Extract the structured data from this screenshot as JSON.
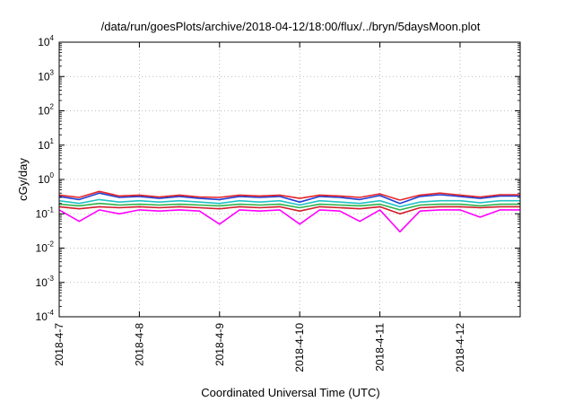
{
  "chart_data": {
    "type": "line",
    "title": "/data/run/goesPlots/archive/2018-04-12/18:00/flux/../bryn/5daysMoon.plot",
    "xlabel": "Coordinated Universal Time (UTC)",
    "ylabel": "cGy/day",
    "y_scale": "log",
    "ylim": [
      0.0001,
      10000
    ],
    "y_ticks": [
      {
        "base": "10",
        "exp": "4",
        "value": 10000
      },
      {
        "base": "10",
        "exp": "3",
        "value": 1000
      },
      {
        "base": "10",
        "exp": "2",
        "value": 100
      },
      {
        "base": "10",
        "exp": "1",
        "value": 10
      },
      {
        "base": "10",
        "exp": "0",
        "value": 1
      },
      {
        "base": "10",
        "exp": "-1",
        "value": 0.1
      },
      {
        "base": "10",
        "exp": "-2",
        "value": 0.01
      },
      {
        "base": "10",
        "exp": "-3",
        "value": 0.001
      },
      {
        "base": "10",
        "exp": "-4",
        "value": 0.0001
      }
    ],
    "x_range": [
      "2018-04-07T00:00",
      "2018-04-12T18:00"
    ],
    "x_ticks": [
      "2018-4-7",
      "2018-4-8",
      "2018-4-9",
      "2018-4-10",
      "2018-4-11",
      "2018-4-12"
    ],
    "grid": true,
    "series": [
      {
        "color": "#ff00ff",
        "values": [
          [
            "2018-04-07T00:00",
            0.13
          ],
          [
            "2018-04-07T06:00",
            0.06
          ],
          [
            "2018-04-07T12:00",
            0.13
          ],
          [
            "2018-04-07T18:00",
            0.1
          ],
          [
            "2018-04-08T00:00",
            0.13
          ],
          [
            "2018-04-08T06:00",
            0.12
          ],
          [
            "2018-04-08T12:00",
            0.13
          ],
          [
            "2018-04-08T18:00",
            0.12
          ],
          [
            "2018-04-09T00:00",
            0.05
          ],
          [
            "2018-04-09T06:00",
            0.13
          ],
          [
            "2018-04-09T12:00",
            0.12
          ],
          [
            "2018-04-09T18:00",
            0.13
          ],
          [
            "2018-04-10T00:00",
            0.05
          ],
          [
            "2018-04-10T06:00",
            0.13
          ],
          [
            "2018-04-10T12:00",
            0.12
          ],
          [
            "2018-04-10T18:00",
            0.06
          ],
          [
            "2018-04-11T00:00",
            0.13
          ],
          [
            "2018-04-11T06:00",
            0.03
          ],
          [
            "2018-04-11T12:00",
            0.12
          ],
          [
            "2018-04-11T18:00",
            0.13
          ],
          [
            "2018-04-12T00:00",
            0.13
          ],
          [
            "2018-04-12T06:00",
            0.08
          ],
          [
            "2018-04-12T12:00",
            0.13
          ],
          [
            "2018-04-12T18:00",
            0.13
          ]
        ]
      },
      {
        "color": "#d01c2a",
        "values": [
          [
            "2018-04-07T00:00",
            0.16
          ],
          [
            "2018-04-07T06:00",
            0.14
          ],
          [
            "2018-04-07T12:00",
            0.16
          ],
          [
            "2018-04-07T18:00",
            0.15
          ],
          [
            "2018-04-08T00:00",
            0.16
          ],
          [
            "2018-04-08T06:00",
            0.15
          ],
          [
            "2018-04-08T12:00",
            0.16
          ],
          [
            "2018-04-08T18:00",
            0.15
          ],
          [
            "2018-04-09T00:00",
            0.14
          ],
          [
            "2018-04-09T06:00",
            0.16
          ],
          [
            "2018-04-09T12:00",
            0.15
          ],
          [
            "2018-04-09T18:00",
            0.16
          ],
          [
            "2018-04-10T00:00",
            0.12
          ],
          [
            "2018-04-10T06:00",
            0.16
          ],
          [
            "2018-04-10T12:00",
            0.15
          ],
          [
            "2018-04-10T18:00",
            0.14
          ],
          [
            "2018-04-11T00:00",
            0.16
          ],
          [
            "2018-04-11T06:00",
            0.1
          ],
          [
            "2018-04-11T12:00",
            0.15
          ],
          [
            "2018-04-11T18:00",
            0.16
          ],
          [
            "2018-04-12T00:00",
            0.16
          ],
          [
            "2018-04-12T06:00",
            0.15
          ],
          [
            "2018-04-12T12:00",
            0.16
          ],
          [
            "2018-04-12T18:00",
            0.16
          ]
        ]
      },
      {
        "color": "#2db34a",
        "values": [
          [
            "2018-04-07T00:00",
            0.19
          ],
          [
            "2018-04-07T06:00",
            0.17
          ],
          [
            "2018-04-07T12:00",
            0.2
          ],
          [
            "2018-04-07T18:00",
            0.18
          ],
          [
            "2018-04-08T00:00",
            0.19
          ],
          [
            "2018-04-08T06:00",
            0.18
          ],
          [
            "2018-04-08T12:00",
            0.19
          ],
          [
            "2018-04-08T18:00",
            0.18
          ],
          [
            "2018-04-09T00:00",
            0.17
          ],
          [
            "2018-04-09T06:00",
            0.19
          ],
          [
            "2018-04-09T12:00",
            0.18
          ],
          [
            "2018-04-09T18:00",
            0.19
          ],
          [
            "2018-04-10T00:00",
            0.15
          ],
          [
            "2018-04-10T06:00",
            0.19
          ],
          [
            "2018-04-10T12:00",
            0.18
          ],
          [
            "2018-04-10T18:00",
            0.17
          ],
          [
            "2018-04-11T00:00",
            0.19
          ],
          [
            "2018-04-11T06:00",
            0.13
          ],
          [
            "2018-04-11T12:00",
            0.18
          ],
          [
            "2018-04-11T18:00",
            0.19
          ],
          [
            "2018-04-12T00:00",
            0.19
          ],
          [
            "2018-04-12T06:00",
            0.17
          ],
          [
            "2018-04-12T12:00",
            0.19
          ],
          [
            "2018-04-12T18:00",
            0.19
          ]
        ]
      },
      {
        "color": "#20c2c7",
        "values": [
          [
            "2018-04-07T00:00",
            0.24
          ],
          [
            "2018-04-07T06:00",
            0.2
          ],
          [
            "2018-04-07T12:00",
            0.26
          ],
          [
            "2018-04-07T18:00",
            0.22
          ],
          [
            "2018-04-08T00:00",
            0.24
          ],
          [
            "2018-04-08T06:00",
            0.22
          ],
          [
            "2018-04-08T12:00",
            0.24
          ],
          [
            "2018-04-08T18:00",
            0.22
          ],
          [
            "2018-04-09T00:00",
            0.2
          ],
          [
            "2018-04-09T06:00",
            0.24
          ],
          [
            "2018-04-09T12:00",
            0.22
          ],
          [
            "2018-04-09T18:00",
            0.24
          ],
          [
            "2018-04-10T00:00",
            0.18
          ],
          [
            "2018-04-10T06:00",
            0.24
          ],
          [
            "2018-04-10T12:00",
            0.22
          ],
          [
            "2018-04-10T18:00",
            0.2
          ],
          [
            "2018-04-11T00:00",
            0.24
          ],
          [
            "2018-04-11T06:00",
            0.16
          ],
          [
            "2018-04-11T12:00",
            0.22
          ],
          [
            "2018-04-11T18:00",
            0.24
          ],
          [
            "2018-04-12T00:00",
            0.24
          ],
          [
            "2018-04-12T06:00",
            0.21
          ],
          [
            "2018-04-12T12:00",
            0.24
          ],
          [
            "2018-04-12T18:00",
            0.24
          ]
        ]
      },
      {
        "color": "#1f3fd6",
        "values": [
          [
            "2018-04-07T00:00",
            0.32
          ],
          [
            "2018-04-07T06:00",
            0.26
          ],
          [
            "2018-04-07T12:00",
            0.4
          ],
          [
            "2018-04-07T18:00",
            0.3
          ],
          [
            "2018-04-08T00:00",
            0.32
          ],
          [
            "2018-04-08T06:00",
            0.28
          ],
          [
            "2018-04-08T12:00",
            0.32
          ],
          [
            "2018-04-08T18:00",
            0.28
          ],
          [
            "2018-04-09T00:00",
            0.26
          ],
          [
            "2018-04-09T06:00",
            0.32
          ],
          [
            "2018-04-09T12:00",
            0.3
          ],
          [
            "2018-04-09T18:00",
            0.32
          ],
          [
            "2018-04-10T00:00",
            0.22
          ],
          [
            "2018-04-10T06:00",
            0.32
          ],
          [
            "2018-04-10T12:00",
            0.3
          ],
          [
            "2018-04-10T18:00",
            0.26
          ],
          [
            "2018-04-11T00:00",
            0.34
          ],
          [
            "2018-04-11T06:00",
            0.2
          ],
          [
            "2018-04-11T12:00",
            0.32
          ],
          [
            "2018-04-11T18:00",
            0.36
          ],
          [
            "2018-04-12T00:00",
            0.32
          ],
          [
            "2018-04-12T06:00",
            0.28
          ],
          [
            "2018-04-12T12:00",
            0.33
          ],
          [
            "2018-04-12T18:00",
            0.33
          ]
        ]
      },
      {
        "color": "#e5262a",
        "values": [
          [
            "2018-04-07T00:00",
            0.35
          ],
          [
            "2018-04-07T06:00",
            0.3
          ],
          [
            "2018-04-07T12:00",
            0.45
          ],
          [
            "2018-04-07T18:00",
            0.33
          ],
          [
            "2018-04-08T00:00",
            0.35
          ],
          [
            "2018-04-08T06:00",
            0.31
          ],
          [
            "2018-04-08T12:00",
            0.35
          ],
          [
            "2018-04-08T18:00",
            0.31
          ],
          [
            "2018-04-09T00:00",
            0.3
          ],
          [
            "2018-04-09T06:00",
            0.35
          ],
          [
            "2018-04-09T12:00",
            0.33
          ],
          [
            "2018-04-09T18:00",
            0.35
          ],
          [
            "2018-04-10T00:00",
            0.28
          ],
          [
            "2018-04-10T06:00",
            0.35
          ],
          [
            "2018-04-10T12:00",
            0.33
          ],
          [
            "2018-04-10T18:00",
            0.3
          ],
          [
            "2018-04-11T00:00",
            0.38
          ],
          [
            "2018-04-11T06:00",
            0.25
          ],
          [
            "2018-04-11T12:00",
            0.35
          ],
          [
            "2018-04-11T18:00",
            0.4
          ],
          [
            "2018-04-12T00:00",
            0.35
          ],
          [
            "2018-04-12T06:00",
            0.31
          ],
          [
            "2018-04-12T12:00",
            0.36
          ],
          [
            "2018-04-12T18:00",
            0.36
          ]
        ]
      }
    ]
  }
}
